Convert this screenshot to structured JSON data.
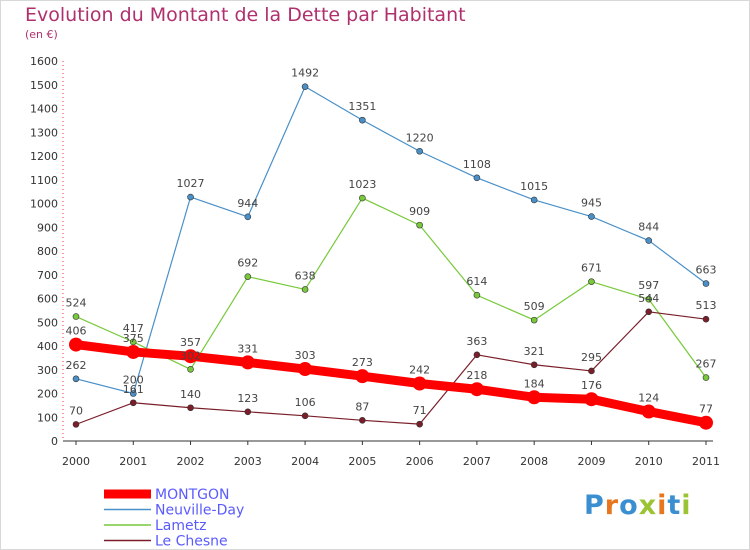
{
  "title": "Evolution du Montant de la Dette par Habitant",
  "subtitle": "(en €)",
  "logo": "Proxiti",
  "chart_data": {
    "type": "line",
    "title": "Evolution du Montant de la Dette par Habitant",
    "ylabel": "(en €)",
    "xlabel": "",
    "ylim": [
      0,
      1600
    ],
    "yticks": [
      0,
      100,
      200,
      300,
      400,
      500,
      600,
      700,
      800,
      900,
      1000,
      1100,
      1200,
      1300,
      1400,
      1500,
      1600
    ],
    "grid": false,
    "legend_position": "bottom-left",
    "x": [
      "2000",
      "2001",
      "2002",
      "2003",
      "2004",
      "2005",
      "2006",
      "2007",
      "2008",
      "2009",
      "2010",
      "2011"
    ],
    "series": [
      {
        "name": "Neuville-Day",
        "color": "#4a90c8",
        "values": [
          262,
          200,
          1027,
          944,
          1492,
          1351,
          1220,
          1108,
          1015,
          945,
          844,
          663
        ]
      },
      {
        "name": "Lametz",
        "color": "#77c93a",
        "values": [
          524,
          417,
          302,
          692,
          638,
          1023,
          909,
          614,
          509,
          671,
          597,
          267
        ]
      },
      {
        "name": "Le Chesne",
        "color": "#7a1f2a",
        "values": [
          70,
          161,
          140,
          123,
          106,
          87,
          71,
          363,
          321,
          295,
          544,
          513
        ]
      },
      {
        "name": "MONTGON",
        "color": "#ff0000",
        "values": [
          406,
          375,
          357,
          331,
          303,
          273,
          242,
          218,
          184,
          176,
          124,
          77
        ]
      }
    ]
  }
}
